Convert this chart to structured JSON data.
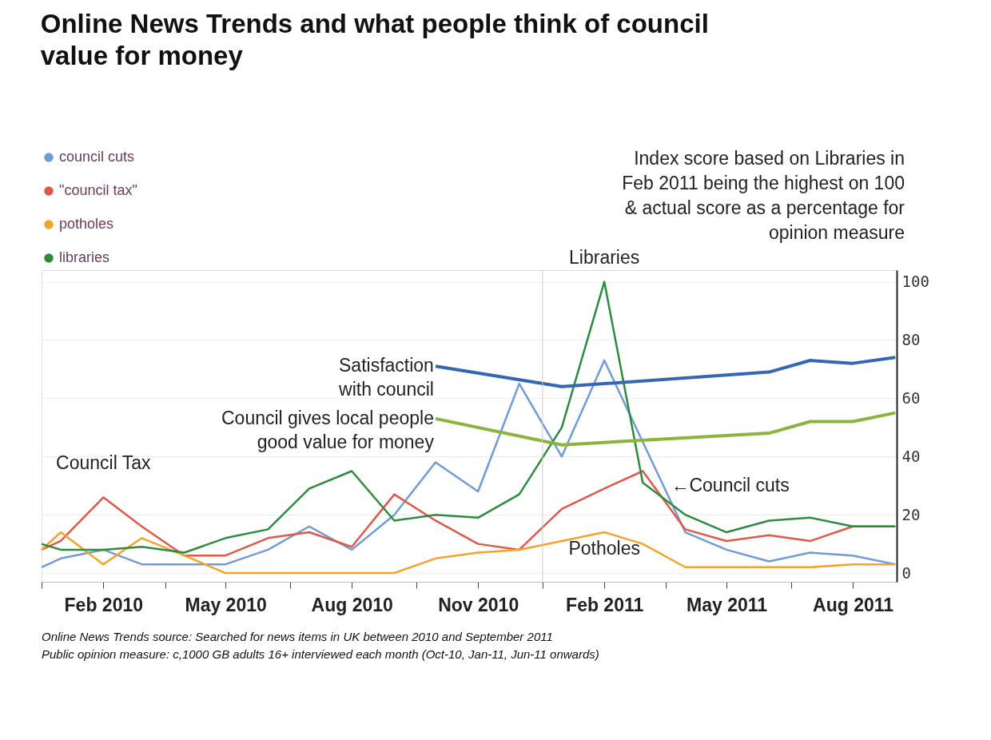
{
  "chart_data": {
    "type": "line",
    "title": "Online News Trends and what people think of council value for money",
    "subtitle": "Index score based on Libraries in Feb 2011 being the highest on 100 & actual score as a percentage for opinion measure",
    "x": [
      "2010-01-01",
      "2010-01-15",
      "2010-02-15",
      "2010-03-15",
      "2010-04-15",
      "2010-05-15",
      "2010-06-15",
      "2010-07-15",
      "2010-08-15",
      "2010-09-15",
      "2010-10-15",
      "2010-11-15",
      "2010-12-15",
      "2011-01-15",
      "2011-02-15",
      "2011-03-15",
      "2011-04-15",
      "2011-05-15",
      "2011-06-15",
      "2011-07-15",
      "2011-08-15",
      "2011-09-15"
    ],
    "series": [
      {
        "name": "council cuts",
        "color": "#6f9bd8",
        "values": [
          2,
          5,
          8,
          3,
          3,
          3,
          8,
          16,
          8,
          20,
          38,
          28,
          65,
          40,
          73,
          45,
          14,
          8,
          4,
          7,
          6,
          3
        ]
      },
      {
        "name": "\"council tax\"",
        "color": "#e0584a",
        "values": [
          8,
          11,
          26,
          16,
          6,
          6,
          12,
          14,
          9,
          27,
          18,
          10,
          8,
          22,
          29,
          35,
          15,
          11,
          13,
          11,
          16,
          16
        ]
      },
      {
        "name": "potholes",
        "color": "#f5a32a",
        "values": [
          8,
          14,
          3,
          12,
          6,
          0,
          0,
          0,
          0,
          0,
          5,
          7,
          8,
          11,
          14,
          10,
          2,
          2,
          2,
          2,
          3,
          3
        ]
      },
      {
        "name": "libraries",
        "color": "#2e8b3e",
        "values": [
          10,
          8,
          8,
          9,
          7,
          12,
          15,
          29,
          35,
          18,
          20,
          19,
          27,
          50,
          100,
          31,
          20,
          14,
          18,
          19,
          16,
          16
        ]
      },
      {
        "name": "Satisfaction with council",
        "color": "#3366b3",
        "type": "line",
        "x": [
          "2010-10-15",
          "2011-01-15",
          "2011-06-15",
          "2011-07-15",
          "2011-08-15",
          "2011-09-15"
        ],
        "values": [
          71,
          64,
          69,
          73,
          72,
          74
        ]
      },
      {
        "name": "Council gives local people good value for money",
        "color": "#8ab43c",
        "type": "line",
        "x": [
          "2010-10-15",
          "2011-01-15",
          "2011-06-15",
          "2011-07-15",
          "2011-08-15",
          "2011-09-15"
        ],
        "values": [
          53,
          44,
          48,
          52,
          52,
          55
        ]
      }
    ],
    "xlim": [
      "2010-01-01",
      "2011-09-16"
    ],
    "xticks": [
      {
        "value": "2010-01-01",
        "label": null
      },
      {
        "value": "2010-02-15",
        "label": "Feb 2010"
      },
      {
        "value": "2010-04-01",
        "label": null
      },
      {
        "value": "2010-05-15",
        "label": "May 2010"
      },
      {
        "value": "2010-07-01",
        "label": null
      },
      {
        "value": "2010-08-15",
        "label": "Aug 2010"
      },
      {
        "value": "2010-10-01",
        "label": null
      },
      {
        "value": "2010-11-15",
        "label": "Nov 2010"
      },
      {
        "value": "2011-01-01",
        "label": null
      },
      {
        "value": "2011-02-15",
        "label": "Feb 2011"
      },
      {
        "value": "2011-04-01",
        "label": null
      },
      {
        "value": "2011-05-15",
        "label": "May 2011"
      },
      {
        "value": "2011-07-01",
        "label": null
      },
      {
        "value": "2011-08-15",
        "label": "Aug 2011"
      }
    ],
    "ylim": [
      -3,
      104
    ],
    "yticks": [
      0,
      20,
      40,
      60,
      80,
      100
    ],
    "grid": "y",
    "legend": "top left",
    "marker": "none",
    "line_style": "solid",
    "ref_lines": [
      {
        "axis": "x",
        "value": "2011-01-01",
        "color": "#cccccc"
      }
    ],
    "annotations": [
      {
        "text": "Council Tax",
        "x": "2010-02-15",
        "y": 26
      },
      {
        "text": "Libraries",
        "x": "2011-02-15",
        "y": 100
      },
      {
        "text": "Potholes",
        "x": "2011-02-15",
        "y": 14
      },
      {
        "text": "←Council cuts",
        "x": "2011-04-01",
        "y": 30
      },
      "Online News Trends source: Searched for news items in UK between 2010 and September 2011",
      "Public opinion measure: c,1000 GB adults 16+ interviewed each month (Oct-10, Jan-11, Jun-11 onwards)"
    ]
  }
}
